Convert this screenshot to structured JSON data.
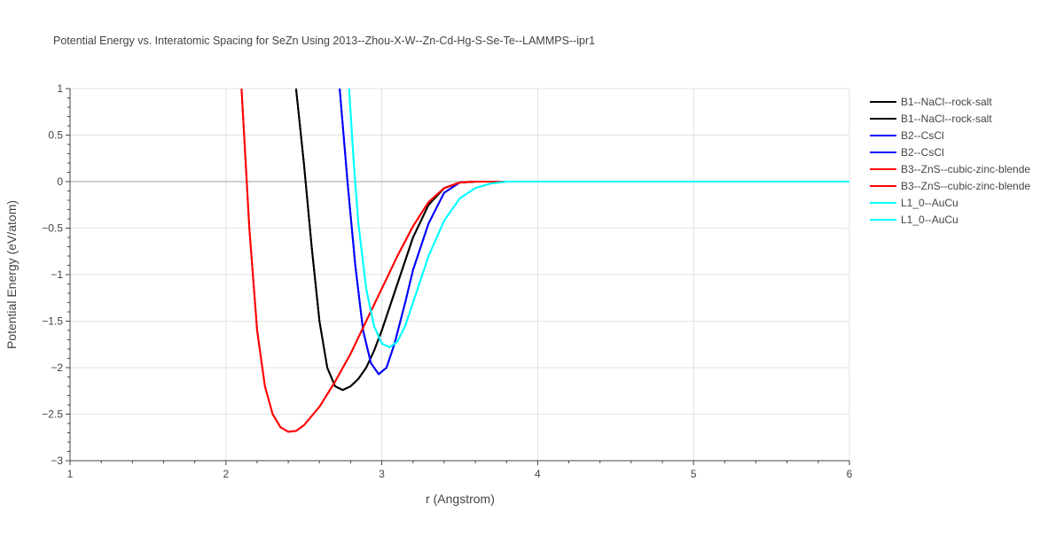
{
  "chart_data": {
    "type": "line",
    "title": "Potential Energy vs. Interatomic Spacing for SeZn Using 2013--Zhou-X-W--Zn-Cd-Hg-S-Se-Te--LAMMPS--ipr1",
    "xlabel": "r (Angstrom)",
    "ylabel": "Potential Energy (eV/atom)",
    "xlim": [
      1,
      6
    ],
    "ylim": [
      -3,
      1
    ],
    "xticks": [
      1,
      2,
      3,
      4,
      5,
      6
    ],
    "xtick_labels": [
      "1",
      "2",
      "3",
      "4",
      "5",
      "6"
    ],
    "yticks": [
      -3,
      -2.5,
      -2,
      -1.5,
      -1,
      -0.5,
      0,
      0.5,
      1
    ],
    "ytick_labels": [
      "−3",
      "−2.5",
      "−2",
      "−1.5",
      "−1",
      "−0.5",
      "0",
      "0.5",
      "1"
    ],
    "grid": true,
    "legend_position": "right",
    "series": [
      {
        "name": "B1--NaCl--rock-salt",
        "color": "#000000",
        "x": [
          2.45,
          2.5,
          2.55,
          2.6,
          2.65,
          2.7,
          2.75,
          2.8,
          2.85,
          2.9,
          2.95,
          3.0,
          3.1,
          3.2,
          3.3,
          3.4,
          3.5,
          3.6,
          3.8,
          4.0,
          5.0,
          6.0
        ],
        "y": [
          1.0,
          0.2,
          -0.7,
          -1.5,
          -2.0,
          -2.2,
          -2.24,
          -2.2,
          -2.12,
          -2.0,
          -1.82,
          -1.6,
          -1.1,
          -0.6,
          -0.25,
          -0.07,
          -0.01,
          0.0,
          0.0,
          0.0,
          0.0,
          0.0
        ]
      },
      {
        "name": "B1--NaCl--rock-salt",
        "color": "#000000",
        "x": [
          2.45,
          2.5,
          2.55,
          2.6,
          2.65,
          2.7,
          2.75,
          2.8,
          2.85,
          2.9,
          2.95,
          3.0,
          3.1,
          3.2,
          3.3,
          3.4,
          3.5,
          3.6,
          3.8,
          4.0,
          5.0,
          6.0
        ],
        "y": [
          1.0,
          0.2,
          -0.7,
          -1.5,
          -2.0,
          -2.2,
          -2.24,
          -2.2,
          -2.12,
          -2.0,
          -1.82,
          -1.6,
          -1.1,
          -0.6,
          -0.25,
          -0.07,
          -0.01,
          0.0,
          0.0,
          0.0,
          0.0,
          0.0
        ]
      },
      {
        "name": "B2--CsCl",
        "color": "#0000ff",
        "x": [
          2.73,
          2.78,
          2.83,
          2.88,
          2.93,
          2.98,
          3.03,
          3.08,
          3.15,
          3.2,
          3.3,
          3.4,
          3.5,
          3.6,
          3.8,
          4.0,
          5.0,
          6.0
        ],
        "y": [
          1.0,
          0.0,
          -0.9,
          -1.6,
          -1.95,
          -2.07,
          -2.0,
          -1.75,
          -1.3,
          -0.95,
          -0.45,
          -0.12,
          -0.01,
          0.0,
          0.0,
          0.0,
          0.0,
          0.0
        ]
      },
      {
        "name": "B2--CsCl",
        "color": "#0000ff",
        "x": [
          2.73,
          2.78,
          2.83,
          2.88,
          2.93,
          2.98,
          3.03,
          3.08,
          3.15,
          3.2,
          3.3,
          3.4,
          3.5,
          3.6,
          3.8,
          4.0,
          5.0,
          6.0
        ],
        "y": [
          1.0,
          0.0,
          -0.9,
          -1.6,
          -1.95,
          -2.07,
          -2.0,
          -1.75,
          -1.3,
          -0.95,
          -0.45,
          -0.12,
          -0.01,
          0.0,
          0.0,
          0.0,
          0.0,
          0.0
        ]
      },
      {
        "name": "B3--ZnS--cubic-zinc-blende",
        "color": "#ff0000",
        "x": [
          2.1,
          2.15,
          2.2,
          2.25,
          2.3,
          2.35,
          2.4,
          2.45,
          2.5,
          2.6,
          2.7,
          2.8,
          2.9,
          3.0,
          3.1,
          3.2,
          3.3,
          3.4,
          3.5,
          3.6,
          3.8,
          4.0,
          5.0,
          6.0
        ],
        "y": [
          1.0,
          -0.5,
          -1.6,
          -2.2,
          -2.5,
          -2.64,
          -2.69,
          -2.68,
          -2.62,
          -2.42,
          -2.15,
          -1.85,
          -1.5,
          -1.15,
          -0.8,
          -0.48,
          -0.22,
          -0.07,
          -0.01,
          0.0,
          0.0,
          0.0,
          0.0,
          0.0
        ]
      },
      {
        "name": "B3--ZnS--cubic-zinc-blende",
        "color": "#ff0000",
        "x": [
          2.1,
          2.15,
          2.2,
          2.25,
          2.3,
          2.35,
          2.4,
          2.45,
          2.5,
          2.6,
          2.7,
          2.8,
          2.9,
          3.0,
          3.1,
          3.2,
          3.3,
          3.4,
          3.5,
          3.6,
          3.8,
          4.0,
          5.0,
          6.0
        ],
        "y": [
          1.0,
          -0.5,
          -1.6,
          -2.2,
          -2.5,
          -2.64,
          -2.69,
          -2.68,
          -2.62,
          -2.42,
          -2.15,
          -1.85,
          -1.5,
          -1.15,
          -0.8,
          -0.48,
          -0.22,
          -0.07,
          -0.01,
          0.0,
          0.0,
          0.0,
          0.0,
          0.0
        ]
      },
      {
        "name": "L1_0--AuCu",
        "color": "#00ffff",
        "x": [
          2.79,
          2.82,
          2.85,
          2.9,
          2.95,
          3.0,
          3.05,
          3.1,
          3.15,
          3.2,
          3.3,
          3.4,
          3.5,
          3.6,
          3.7,
          3.8,
          3.9,
          4.0,
          5.0,
          6.0
        ],
        "y": [
          1.0,
          0.2,
          -0.45,
          -1.15,
          -1.55,
          -1.74,
          -1.78,
          -1.72,
          -1.55,
          -1.3,
          -0.8,
          -0.42,
          -0.18,
          -0.07,
          -0.02,
          0.0,
          0.0,
          0.0,
          0.0,
          0.0
        ]
      },
      {
        "name": "L1_0--AuCu",
        "color": "#00ffff",
        "x": [
          2.79,
          2.82,
          2.85,
          2.9,
          2.95,
          3.0,
          3.05,
          3.1,
          3.15,
          3.2,
          3.3,
          3.4,
          3.5,
          3.6,
          3.7,
          3.8,
          3.9,
          4.0,
          5.0,
          6.0
        ],
        "y": [
          1.0,
          0.2,
          -0.45,
          -1.15,
          -1.55,
          -1.74,
          -1.78,
          -1.72,
          -1.55,
          -1.3,
          -0.8,
          -0.42,
          -0.18,
          -0.07,
          -0.02,
          0.0,
          0.0,
          0.0,
          0.0,
          0.0
        ]
      }
    ]
  }
}
